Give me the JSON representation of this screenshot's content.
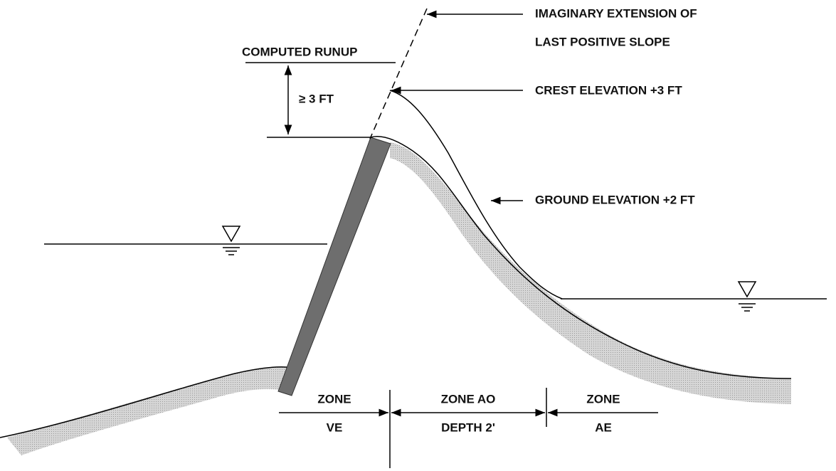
{
  "labels": {
    "imaginary_extension": [
      "IMAGINARY EXTENSION OF",
      "LAST POSITIVE SLOPE"
    ],
    "computed_runup": "COMPUTED RUNUP",
    "runup_height": "≥ 3 FT",
    "crest_elevation": "CREST ELEVATION +3 FT",
    "ground_elevation": "GROUND ELEVATION +2 FT"
  },
  "zones": [
    {
      "name": "ZONE",
      "detail": "VE"
    },
    {
      "name": "ZONE AO",
      "detail": "DEPTH 2'"
    },
    {
      "name": "ZONE",
      "detail": "AE"
    }
  ]
}
